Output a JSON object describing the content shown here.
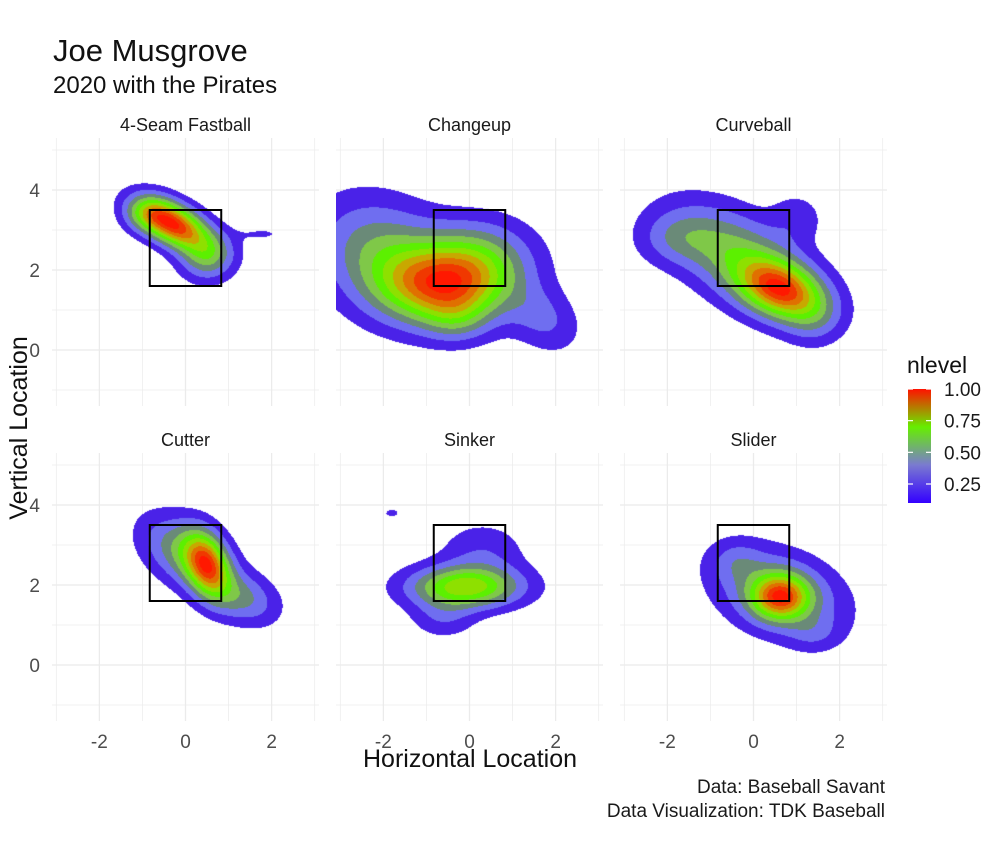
{
  "chart_data": {
    "type": "heatmap",
    "title": "Joe Musgrove",
    "subtitle": "2020 with the Pirates",
    "xlabel": "Horizontal Location",
    "ylabel": "Vertical Location",
    "xlim": [
      -3.1,
      3.1
    ],
    "ylim": [
      -1.4,
      5.3
    ],
    "x_ticks": [
      -2,
      0,
      2
    ],
    "x_tick_labels": [
      "-2",
      "0",
      "2"
    ],
    "y_ticks": [
      0,
      2,
      4
    ],
    "y_tick_labels": [
      "0",
      "2",
      "4"
    ],
    "grid": true,
    "legend_position": "right",
    "strike_zone": {
      "x": [
        -0.83,
        0.83
      ],
      "y": [
        1.6,
        3.5
      ]
    },
    "colorbar": {
      "title": "nlevel",
      "ticks": [
        0.25,
        0.5,
        0.75,
        1.0
      ],
      "tick_labels": [
        "0.25",
        "0.50",
        "0.75",
        "1.00"
      ],
      "range": [
        0.1,
        1.0
      ],
      "colors": [
        "#3300ff",
        "#7a7ad0",
        "#66ee00",
        "#ff1100"
      ]
    },
    "level_colors": [
      "#4a22e8",
      "#6f6ef0",
      "#6a8a78",
      "#7fc848",
      "#5cf000",
      "#8ee000",
      "#c8a800",
      "#e07000",
      "#f03800",
      "#ff1800"
    ],
    "panels": [
      {
        "name": "4-Seam Fastball",
        "peak_level": 1.0,
        "kernels": [
          {
            "x": -0.3,
            "y": 3.15,
            "sx": 0.55,
            "sy": 0.42,
            "rho": -0.5,
            "w": 1.0
          },
          {
            "x": 0.5,
            "y": 2.35,
            "sx": 0.42,
            "sy": 0.4,
            "rho": 0.0,
            "w": 0.38
          },
          {
            "x": -0.9,
            "y": 3.4,
            "sx": 0.35,
            "sy": 0.3,
            "rho": 0.0,
            "w": 0.25
          },
          {
            "x": 1.8,
            "y": 2.9,
            "sx": 0.45,
            "sy": 0.15,
            "rho": 0.0,
            "w": 0.07
          }
        ]
      },
      {
        "name": "Changeup",
        "peak_level": 1.0,
        "kernels": [
          {
            "x": -0.6,
            "y": 1.6,
            "sx": 1.0,
            "sy": 0.65,
            "rho": 0.0,
            "w": 1.0
          },
          {
            "x": -2.0,
            "y": 2.4,
            "sx": 1.0,
            "sy": 0.9,
            "rho": -0.2,
            "w": 0.45
          },
          {
            "x": 0.2,
            "y": 2.3,
            "sx": 0.85,
            "sy": 0.65,
            "rho": 0.0,
            "w": 0.4
          },
          {
            "x": 1.7,
            "y": 0.8,
            "sx": 0.55,
            "sy": 0.55,
            "rho": -0.3,
            "w": 0.22
          },
          {
            "x": -0.3,
            "y": 0.8,
            "sx": 0.5,
            "sy": 0.4,
            "rho": 0.0,
            "w": 0.22
          }
        ]
      },
      {
        "name": "Curveball",
        "peak_level": 1.0,
        "kernels": [
          {
            "x": 0.65,
            "y": 1.5,
            "sx": 0.65,
            "sy": 0.5,
            "rho": -0.3,
            "w": 1.0
          },
          {
            "x": -0.3,
            "y": 2.3,
            "sx": 1.05,
            "sy": 0.85,
            "rho": -0.5,
            "w": 0.55
          },
          {
            "x": -1.8,
            "y": 2.8,
            "sx": 0.6,
            "sy": 0.45,
            "rho": 0.0,
            "w": 0.22
          },
          {
            "x": 1.4,
            "y": 0.8,
            "sx": 0.45,
            "sy": 0.45,
            "rho": 0.0,
            "w": 0.2
          },
          {
            "x": 1.0,
            "y": 3.3,
            "sx": 0.4,
            "sy": 0.4,
            "rho": 0.0,
            "w": 0.15
          }
        ]
      },
      {
        "name": "Cutter",
        "peak_level": 1.0,
        "kernels": [
          {
            "x": 0.5,
            "y": 2.5,
            "sx": 0.35,
            "sy": 0.55,
            "rho": -0.3,
            "w": 1.0
          },
          {
            "x": 0.0,
            "y": 2.8,
            "sx": 0.65,
            "sy": 0.6,
            "rho": -0.4,
            "w": 0.5
          },
          {
            "x": 1.3,
            "y": 1.7,
            "sx": 0.55,
            "sy": 0.45,
            "rho": -0.3,
            "w": 0.38
          }
        ]
      },
      {
        "name": "Sinker",
        "peak_level": 0.65,
        "kernels": [
          {
            "x": -0.1,
            "y": 1.95,
            "sx": 0.85,
            "sy": 0.35,
            "rho": 0.0,
            "w": 1.0
          },
          {
            "x": 0.3,
            "y": 2.8,
            "sx": 0.65,
            "sy": 0.5,
            "rho": 0.0,
            "w": 0.22
          },
          {
            "x": -0.6,
            "y": 1.2,
            "sx": 0.5,
            "sy": 0.35,
            "rho": 0.0,
            "w": 0.22
          },
          {
            "x": -1.8,
            "y": 3.8,
            "sx": 0.2,
            "sy": 0.12,
            "rho": 0.0,
            "w": 0.12
          }
        ]
      },
      {
        "name": "Slider",
        "peak_level": 1.0,
        "kernels": [
          {
            "x": 0.62,
            "y": 1.7,
            "sx": 0.45,
            "sy": 0.38,
            "rho": 0.0,
            "w": 1.0
          },
          {
            "x": 0.6,
            "y": 1.8,
            "sx": 0.95,
            "sy": 0.7,
            "rho": -0.3,
            "w": 0.5
          },
          {
            "x": -0.4,
            "y": 2.6,
            "sx": 0.4,
            "sy": 0.35,
            "rho": 0.0,
            "w": 0.18
          },
          {
            "x": 1.4,
            "y": 0.8,
            "sx": 0.4,
            "sy": 0.3,
            "rho": 0.0,
            "w": 0.15
          }
        ]
      }
    ]
  },
  "caption": {
    "source": "Data: Baseball Savant",
    "credit": "Data Visualization: TDK Baseball"
  }
}
